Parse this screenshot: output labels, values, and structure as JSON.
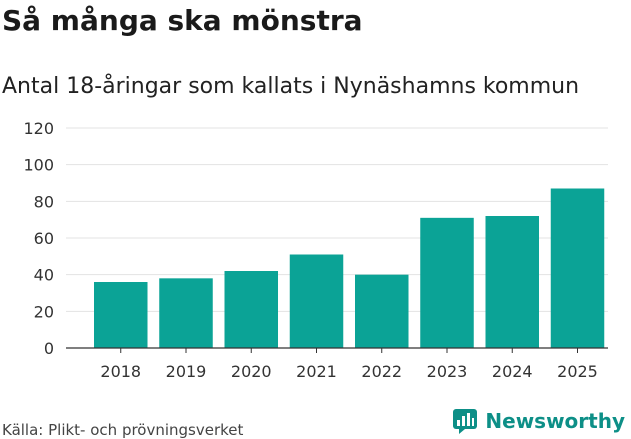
{
  "header": {
    "title": "Så många ska mönstra",
    "subtitle": "Antal 18-åringar som kallats i Nynäshamns kommun"
  },
  "footer": {
    "source": "Källa: Plikt- och prövningsverket",
    "brand": "Newsworthy",
    "brand_icon": "bar-chart-logo-icon"
  },
  "colors": {
    "bar": "#0ba396",
    "grid": "#e3e3e3",
    "axis": "#333333",
    "brand": "#0d8f87"
  },
  "chart_data": {
    "type": "bar",
    "title": "Så många ska mönstra",
    "subtitle": "Antal 18-åringar som kallats i Nynäshamns kommun",
    "xlabel": "",
    "ylabel": "",
    "categories": [
      "2018",
      "2019",
      "2020",
      "2021",
      "2022",
      "2023",
      "2024",
      "2025"
    ],
    "values": [
      36,
      38,
      42,
      51,
      40,
      71,
      72,
      87
    ],
    "ylim": [
      0,
      120
    ],
    "yticks": [
      0,
      20,
      40,
      60,
      80,
      100,
      120
    ],
    "grid": true,
    "legend": "none"
  }
}
